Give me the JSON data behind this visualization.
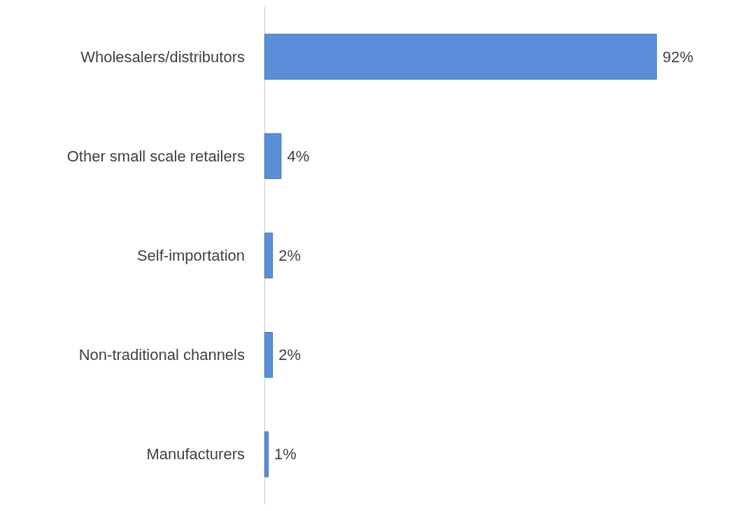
{
  "chart_data": {
    "type": "bar",
    "orientation": "horizontal",
    "categories": [
      "Wholesalers/distributors",
      "Other small scale retailers",
      "Self-importation",
      "Non-traditional channels",
      "Manufacturers"
    ],
    "values": [
      92,
      4,
      2,
      2,
      1
    ],
    "value_labels": [
      "92%",
      "4%",
      "2%",
      "2%",
      "1%"
    ],
    "color": "#5b8fd9",
    "grid": false
  }
}
